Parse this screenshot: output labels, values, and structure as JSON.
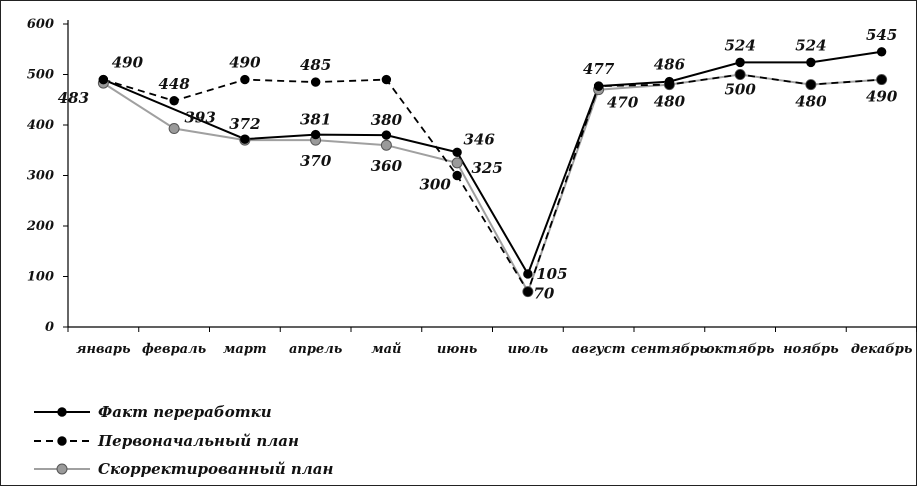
{
  "chart_data": {
    "type": "line",
    "title": "",
    "xlabel": "",
    "ylabel": "",
    "ylim": [
      0,
      600
    ],
    "yticks": [
      0,
      100,
      200,
      300,
      400,
      500,
      600
    ],
    "grid": false,
    "legend_position": "bottom-left",
    "categories": [
      "январь",
      "февраль",
      "март",
      "апрель",
      "май",
      "июнь",
      "июль",
      "август",
      "сентябрь",
      "октябрь",
      "ноябрь",
      "декабрь"
    ],
    "series": [
      {
        "name": "Факт переработки",
        "style": "solid",
        "color": "#000000",
        "marker_color": "#000000",
        "values": [
          490,
          null,
          372,
          381,
          380,
          346,
          105,
          477,
          486,
          524,
          524,
          545
        ],
        "labels": [
          "",
          "",
          "372",
          "381",
          "380",
          "346",
          "105",
          "477",
          "486",
          "524",
          "524",
          "545"
        ]
      },
      {
        "name": "Первоначальный план",
        "style": "dashed",
        "color": "#000000",
        "marker_color": "#000000",
        "values": [
          490,
          448,
          490,
          485,
          490,
          300,
          70,
          477,
          480,
          500,
          480,
          490
        ],
        "labels": [
          "490",
          "448",
          "490",
          "485",
          "",
          "300",
          "",
          "",
          "",
          "",
          "",
          ""
        ]
      },
      {
        "name": "Скорректированный план",
        "style": "solid",
        "color": "#a0a0a0",
        "marker_color": "#9a9a9a",
        "values": [
          483,
          393,
          370,
          370,
          360,
          325,
          70,
          470,
          480,
          500,
          480,
          490
        ],
        "labels": [
          "483",
          "393",
          "",
          "370",
          "360",
          "325",
          "70",
          "470",
          "480",
          "500",
          "480",
          "490"
        ]
      }
    ]
  }
}
